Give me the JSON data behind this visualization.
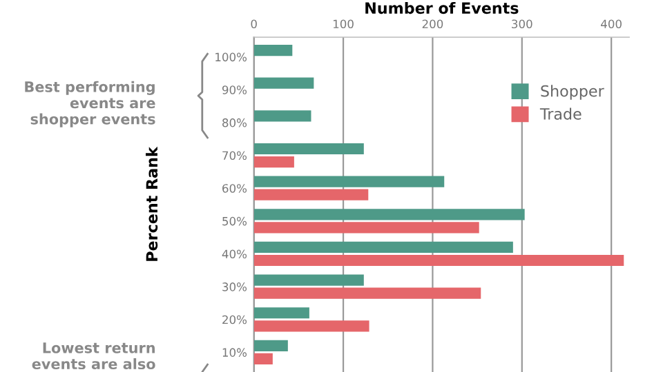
{
  "chart_data": {
    "type": "bar",
    "orientation": "horizontal",
    "xlabel": "Number of Events",
    "ylabel": "Percent Rank",
    "categories": [
      "100%",
      "90%",
      "80%",
      "70%",
      "60%",
      "50%",
      "40%",
      "30%",
      "20%",
      "10%"
    ],
    "series": [
      {
        "name": "Shopper",
        "color": "#4e9a88",
        "values": [
          43,
          67,
          64,
          123,
          213,
          303,
          290,
          123,
          62,
          38
        ]
      },
      {
        "name": "Trade",
        "color": "#e5666a",
        "values": [
          null,
          null,
          null,
          45,
          128,
          252,
          414,
          254,
          129,
          21
        ]
      }
    ],
    "xlim": [
      0,
      420
    ],
    "xticks": [
      0,
      100,
      200,
      300,
      400
    ],
    "grid": "x",
    "legend": "top right",
    "annotations": [
      "Best performing events are shopper events",
      "Lowest return events are also"
    ]
  }
}
